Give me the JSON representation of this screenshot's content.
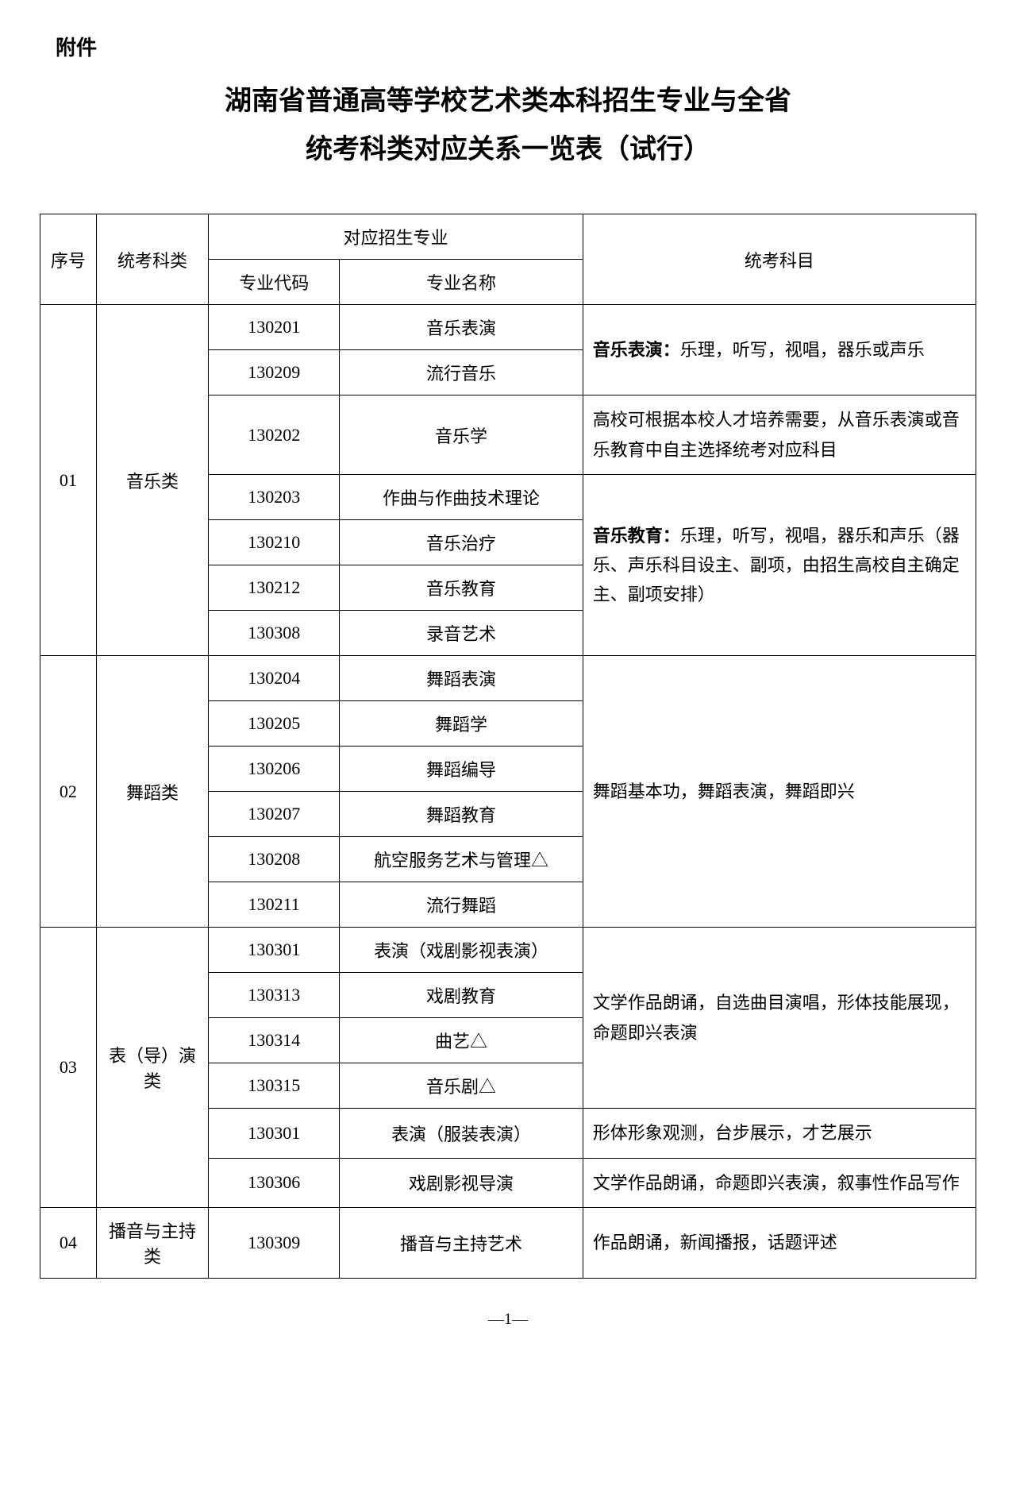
{
  "attachment_label": "附件",
  "title_line1": "湖南省普通高等学校艺术类本科招生专业与全省",
  "title_line2": "统考科类对应关系一览表（试行）",
  "headers": {
    "seq": "序号",
    "category": "统考科类",
    "major_group": "对应招生专业",
    "major_code": "专业代码",
    "major_name": "专业名称",
    "subjects": "统考科目"
  },
  "g01": {
    "seq": "01",
    "category": "音乐类",
    "r1_code": "130201",
    "r1_name": "音乐表演",
    "r2_code": "130209",
    "r2_name": "流行音乐",
    "r3_code": "130202",
    "r3_name": "音乐学",
    "r4_code": "130203",
    "r4_name": "作曲与作曲技术理论",
    "r5_code": "130210",
    "r5_name": "音乐治疗",
    "r6_code": "130212",
    "r6_name": "音乐教育",
    "r7_code": "130308",
    "r7_name": "录音艺术",
    "subj1_bold": "音乐表演：",
    "subj1_rest": "乐理，听写，视唱，器乐或声乐",
    "subj2": "高校可根据本校人才培养需要，从音乐表演或音乐教育中自主选择统考对应科目",
    "subj3_bold": "音乐教育：",
    "subj3_rest": "乐理，听写，视唱，器乐和声乐（器乐、声乐科目设主、副项，由招生高校自主确定主、副项安排）"
  },
  "g02": {
    "seq": "02",
    "category": "舞蹈类",
    "r1_code": "130204",
    "r1_name": "舞蹈表演",
    "r2_code": "130205",
    "r2_name": "舞蹈学",
    "r3_code": "130206",
    "r3_name": "舞蹈编导",
    "r4_code": "130207",
    "r4_name": "舞蹈教育",
    "r5_code": "130208",
    "r5_name": "航空服务艺术与管理△",
    "r6_code": "130211",
    "r6_name": "流行舞蹈",
    "subj": "舞蹈基本功，舞蹈表演，舞蹈即兴"
  },
  "g03": {
    "seq": "03",
    "category": "表（导）演类",
    "r1_code": "130301",
    "r1_name": "表演（戏剧影视表演）",
    "r2_code": "130313",
    "r2_name": "戏剧教育",
    "r3_code": "130314",
    "r3_name": "曲艺△",
    "r4_code": "130315",
    "r4_name": "音乐剧△",
    "r5_code": "130301",
    "r5_name": "表演（服装表演）",
    "r6_code": "130306",
    "r6_name": "戏剧影视导演",
    "subj1": "文学作品朗诵，自选曲目演唱，形体技能展现，命题即兴表演",
    "subj2": "形体形象观测，台步展示，才艺展示",
    "subj3": "文学作品朗诵，命题即兴表演，叙事性作品写作"
  },
  "g04": {
    "seq": "04",
    "category": "播音与主持类",
    "r1_code": "130309",
    "r1_name": "播音与主持艺术",
    "subj": "作品朗诵，新闻播报，话题评述"
  },
  "page_number": "—1—"
}
